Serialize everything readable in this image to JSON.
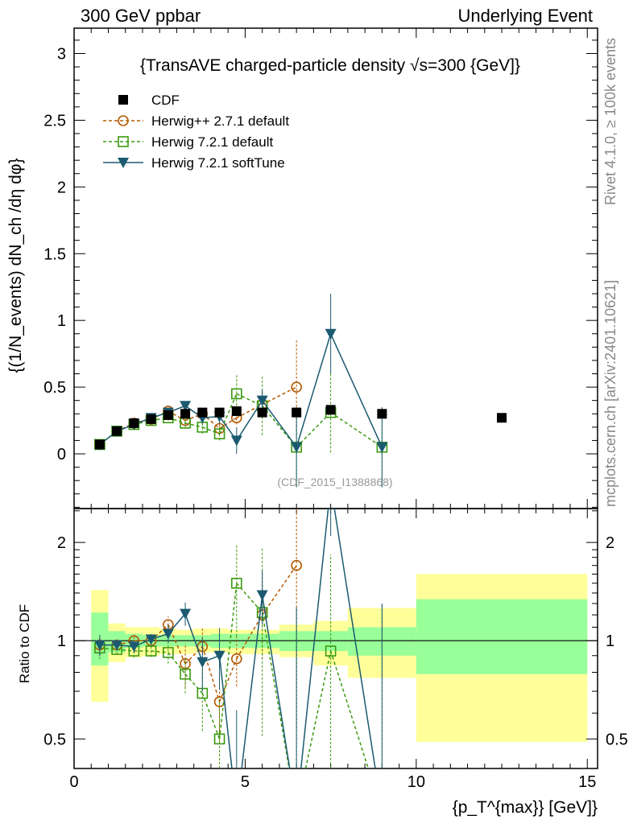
{
  "chart_data": {
    "type": "scatter",
    "header_left": "300 GeV ppbar",
    "header_right": "Underlying Event",
    "title": "{TransAVE charged-particle density √s=300 {GeV]}",
    "ylabel_main": "{(1/N_events) dN_ch /dη dφ}",
    "ylabel_ratio": "Ratio to CDF",
    "xlabel": "{p_T^{max}} [GeV]}",
    "side_top": "Rivet 4.1.0, ≥ 100k events",
    "side_bottom": "mcplots.cern.ch [arXiv:2401.10621]",
    "analysis": "(CDF_2015_I1388868)",
    "xlim": [
      0,
      15.3
    ],
    "ylim_main": [
      -0.41,
      3.19
    ],
    "ylim_ratio": [
      0.406,
      2.54
    ],
    "xticks": [
      0,
      5,
      10,
      15
    ],
    "yticks_main": [
      0,
      0.5,
      1,
      1.5,
      2,
      2.5,
      3
    ],
    "yticks_ratio": [
      0.5,
      1,
      2
    ],
    "data": {
      "name": "CDF",
      "color": "#000000",
      "x": [
        0.75,
        1.25,
        1.75,
        2.25,
        2.75,
        3.25,
        3.75,
        4.25,
        4.75,
        5.5,
        6.5,
        7.5,
        9,
        12.5
      ],
      "y": [
        0.07,
        0.17,
        0.23,
        0.26,
        0.29,
        0.3,
        0.31,
        0.31,
        0.32,
        0.31,
        0.31,
        0.33,
        0.3,
        0.27
      ]
    },
    "band_edges": [
      0.5,
      1,
      1.5,
      2,
      2.5,
      3,
      3.5,
      4,
      4.5,
      5,
      6,
      7,
      8,
      10,
      15
    ],
    "band_inner": [
      [
        0.84,
        1.22
      ],
      [
        0.92,
        1.07
      ],
      [
        0.95,
        1.05
      ],
      [
        0.96,
        1.04
      ],
      [
        0.96,
        1.04
      ],
      [
        0.96,
        1.04
      ],
      [
        0.96,
        1.04
      ],
      [
        0.95,
        1.05
      ],
      [
        0.95,
        1.05
      ],
      [
        0.95,
        1.05
      ],
      [
        0.93,
        1.07
      ],
      [
        0.93,
        1.07
      ],
      [
        0.9,
        1.1
      ],
      [
        0.79,
        1.34
      ]
    ],
    "band_outer": [
      [
        0.65,
        1.43
      ],
      [
        0.86,
        1.13
      ],
      [
        0.89,
        1.1
      ],
      [
        0.9,
        1.1
      ],
      [
        0.91,
        1.09
      ],
      [
        0.91,
        1.08
      ],
      [
        0.92,
        1.09
      ],
      [
        0.92,
        1.09
      ],
      [
        0.91,
        1.08
      ],
      [
        0.91,
        1.08
      ],
      [
        0.89,
        1.12
      ],
      [
        0.84,
        1.15
      ],
      [
        0.77,
        1.26
      ],
      [
        0.49,
        1.6
      ]
    ],
    "series": [
      {
        "name": "Herwig++ 2.7.1 default",
        "color": "#b35a00",
        "marker": "circle",
        "dash": "4,3",
        "x": [
          0.75,
          1.25,
          1.75,
          2.25,
          2.75,
          3.25,
          3.75,
          4.25,
          4.75,
          5.5,
          6.5
        ],
        "y": [
          0.07,
          0.17,
          0.23,
          0.26,
          0.32,
          0.25,
          0.3,
          0.19,
          0.27,
          0.37,
          0.5
        ],
        "yerr": [
          0.005,
          0.005,
          0.01,
          0.01,
          0.02,
          0.04,
          0.04,
          0.05,
          0.05,
          0.1,
          0.36
        ],
        "ratio": [
          0.97,
          0.97,
          1.0,
          1.0,
          1.12,
          0.85,
          0.96,
          0.65,
          0.88,
          1.2,
          1.7
        ]
      },
      {
        "name": "Herwig 7.2.1 default",
        "color": "#3a9a10",
        "marker": "square",
        "dash": "4,3",
        "x": [
          0.75,
          1.25,
          1.75,
          2.25,
          2.75,
          3.25,
          3.75,
          4.25,
          4.75,
          5.5,
          6.5,
          7.5,
          9
        ],
        "y": [
          0.07,
          0.17,
          0.22,
          0.25,
          0.27,
          0.23,
          0.2,
          0.15,
          0.45,
          0.36,
          0.05,
          0.31,
          0.05
        ],
        "yerr": [
          0.005,
          0.005,
          0.01,
          0.01,
          0.02,
          0.03,
          0.05,
          0.05,
          0.15,
          0.22,
          0.3,
          0.3,
          0.3
        ],
        "ratio": [
          0.95,
          0.94,
          0.93,
          0.93,
          0.92,
          0.79,
          0.69,
          0.5,
          1.5,
          1.22,
          0.3,
          0.93,
          0.3
        ]
      },
      {
        "name": "Herwig 7.2.1 softTune",
        "color": "#1b5a70",
        "marker": "triangle",
        "dash": "",
        "x": [
          0.75,
          1.25,
          1.75,
          2.25,
          2.75,
          3.25,
          3.75,
          4.25,
          4.75,
          5.5,
          6.5,
          7.5,
          9
        ],
        "y": [
          0.07,
          0.17,
          0.22,
          0.27,
          0.31,
          0.36,
          0.27,
          0.28,
          0.1,
          0.4,
          0.05,
          0.9,
          0.05
        ],
        "yerr": [
          0.005,
          0.005,
          0.01,
          0.01,
          0.02,
          0.03,
          0.05,
          0.06,
          0.1,
          0.08,
          0.3,
          0.3,
          0.3
        ],
        "ratio": [
          0.97,
          0.97,
          0.96,
          1.01,
          1.05,
          1.21,
          0.86,
          0.9,
          0.3,
          1.38,
          0.3,
          3.0,
          0.3
        ]
      }
    ]
  }
}
